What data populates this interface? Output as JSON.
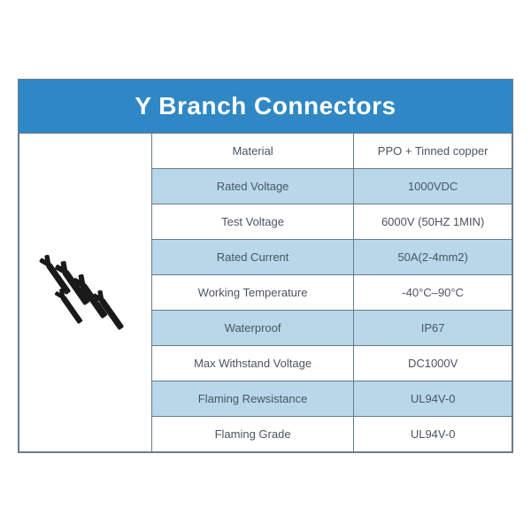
{
  "title": "Y Branch Connectors",
  "colors": {
    "header_bg": "#2f88c5",
    "header_text": "#ffffff",
    "row_alt_bg": "#b8d8ea",
    "row_bg": "#ffffff",
    "border": "#6a7b8a",
    "text": "#4a5560"
  },
  "rows": [
    {
      "label": "Material",
      "value": "PPO + Tinned copper",
      "alt": false
    },
    {
      "label": "Rated Voltage",
      "value": "1000VDC",
      "alt": true
    },
    {
      "label": "Test Voltage",
      "value": "6000V (50HZ 1MIN)",
      "alt": false
    },
    {
      "label": "Rated Current",
      "value": "50A(2-4mm2)",
      "alt": true
    },
    {
      "label": "Working Temperature",
      "value": "-40°C–90°C",
      "alt": false
    },
    {
      "label": "Waterproof",
      "value": "IP67",
      "alt": true
    },
    {
      "label": "Max Withstand Voltage",
      "value": "DC1000V",
      "alt": false
    },
    {
      "label": "Flaming Rewsistance",
      "value": "UL94V-0",
      "alt": true
    },
    {
      "label": "Flaming Grade",
      "value": "UL94V-0",
      "alt": false
    }
  ],
  "layout": {
    "image_rowspan": 9,
    "title_fontsize": 28,
    "cell_fontsize": 13
  }
}
